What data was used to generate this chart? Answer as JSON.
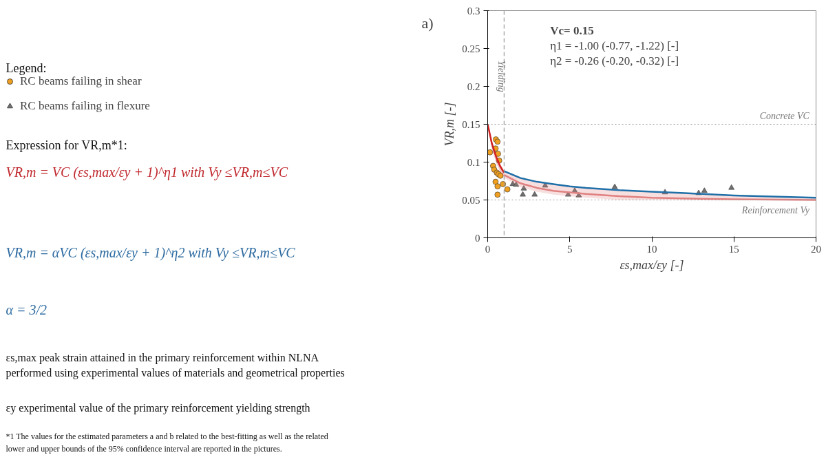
{
  "chart_data": {
    "type": "scatter",
    "title": "a)",
    "xlabel": "εs,max/εy [-]",
    "ylabel": "VR,m [-]",
    "xlim": [
      0,
      20
    ],
    "xticks": [
      0,
      5,
      10,
      15,
      20
    ],
    "ylim": [
      0,
      0.3
    ],
    "yticks": [
      0,
      0.05,
      0.1,
      0.15,
      0.2,
      0.25,
      0.3
    ],
    "grid": false,
    "legend": "left",
    "series": [
      {
        "name": "RC beams failing in shear",
        "type": "scatter",
        "marker": "circle",
        "color": "#f0a020",
        "x": [
          0.14,
          0.5,
          0.6,
          0.48,
          0.63,
          0.33,
          0.4,
          0.56,
          0.66,
          0.78,
          0.48,
          0.6,
          0.6,
          0.93,
          1.2,
          0.7
        ],
        "values": [
          0.113,
          0.13,
          0.127,
          0.118,
          0.111,
          0.095,
          0.09,
          0.086,
          0.084,
          0.082,
          0.074,
          0.068,
          0.057,
          0.071,
          0.064,
          0.102
        ]
      },
      {
        "name": "RC beams failing in flexure",
        "type": "scatter",
        "marker": "triangle",
        "color": "#707070",
        "x": [
          1.53,
          1.73,
          2.2,
          2.14,
          2.86,
          3.5,
          4.9,
          5.3,
          5.55,
          7.74,
          10.8,
          12.85,
          13.2,
          14.85
        ],
        "values": [
          0.071,
          0.07,
          0.065,
          0.057,
          0.057,
          0.069,
          0.057,
          0.062,
          0.056,
          0.067,
          0.06,
          0.059,
          0.062,
          0.066
        ]
      },
      {
        "type": "line",
        "marker": "none",
        "color": "#d02020",
        "x": [
          0,
          0.25,
          0.5,
          0.75,
          1
        ],
        "values": [
          0.15,
          0.125,
          0.108,
          0.095,
          0.086
        ],
        "lower": [
          0.15,
          0.118,
          0.1,
          0.088,
          0.08
        ],
        "upper": [
          0.15,
          0.125,
          0.108,
          0.095,
          0.086
        ]
      },
      {
        "type": "line",
        "marker": "none",
        "color": "#e08080",
        "x": [
          1,
          2,
          3,
          4,
          5,
          6,
          8,
          10,
          12,
          15,
          20
        ],
        "values": [
          0.083,
          0.072,
          0.066,
          0.062,
          0.06,
          0.058,
          0.055,
          0.053,
          0.052,
          0.051,
          0.05
        ],
        "lower": [
          0.079,
          0.067,
          0.061,
          0.057,
          0.055,
          0.053,
          0.05,
          0.05,
          0.05,
          0.05,
          0.05
        ],
        "upper": [
          0.088,
          0.079,
          0.074,
          0.071,
          0.068,
          0.066,
          0.063,
          0.061,
          0.059,
          0.056,
          0.053
        ]
      },
      {
        "type": "line",
        "marker": "none",
        "color": "#1f6fa8",
        "x": [
          1,
          2,
          3,
          4,
          5,
          6,
          8,
          10,
          12,
          15,
          20
        ],
        "values": [
          0.088,
          0.079,
          0.074,
          0.071,
          0.068,
          0.066,
          0.063,
          0.061,
          0.059,
          0.056,
          0.053
        ]
      }
    ],
    "ref_lines": [
      {
        "axis": "y",
        "value": 0.15,
        "label": "Concrete VC",
        "color": "#999999",
        "line_style": "dotted"
      },
      {
        "axis": "y",
        "value": 0.05,
        "label": "Reinforcement Vy",
        "color": "#999999",
        "line_style": "dotted"
      },
      {
        "axis": "x",
        "value": 1,
        "label": "Yielding",
        "color": "#999999",
        "line_style": "dashed"
      }
    ],
    "annotations": [
      "Vc= 0.15",
      "η1 = -1.00 (-0.77, -1.22) [-]",
      "η2 = -0.26 (-0.20, -0.32) [-]",
      "Legend:",
      "Expression for VR,m*1:",
      "VR,m = VC (εs,max/εy + 1)^η1  with Vy ≤VR,m≤VC",
      "VR,m = αVC (εs,max/εy + 1)^η2  with Vy ≤VR,m≤VC",
      "α = 3/2",
      "εs,max  peak strain attained in the primary reinforcement within NLNA\nperformed using experimental values of materials and geometrical properties",
      "εy experimental value of the primary reinforcement yielding strength",
      "*1 The values for the estimated parameters a and b related to the best-fitting as well as the related\nlower and upper bounds of the 95% confidence interval are reported in the pictures."
    ]
  }
}
